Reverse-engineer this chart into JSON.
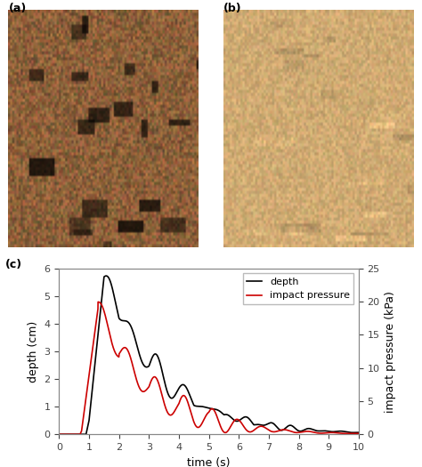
{
  "title_a": "(a)",
  "title_b": "(b)",
  "title_c": "(c)",
  "xlabel": "time (s)",
  "ylabel_left": "depth (cm)",
  "ylabel_right": "impact pressure (kPa)",
  "xlim": [
    0,
    10
  ],
  "ylim_left": [
    0,
    6
  ],
  "ylim_right": [
    0,
    25
  ],
  "yticks_left": [
    0,
    1,
    2,
    3,
    4,
    5,
    6
  ],
  "yticks_right": [
    0,
    5,
    10,
    15,
    20,
    25
  ],
  "xticks": [
    0,
    1,
    2,
    3,
    4,
    5,
    6,
    7,
    8,
    9,
    10
  ],
  "legend_depth": "depth",
  "legend_pressure": "impact pressure",
  "color_depth": "#000000",
  "color_pressure": "#cc0000",
  "line_width": 1.2,
  "img_a_colors": [
    "#5a4535",
    "#8a7060",
    "#6a5545",
    "#3a2a1a",
    "#9a8070"
  ],
  "img_b_colors": [
    "#c8a878",
    "#d4b88a",
    "#b89868",
    "#e0c8a0",
    "#c0a070"
  ]
}
